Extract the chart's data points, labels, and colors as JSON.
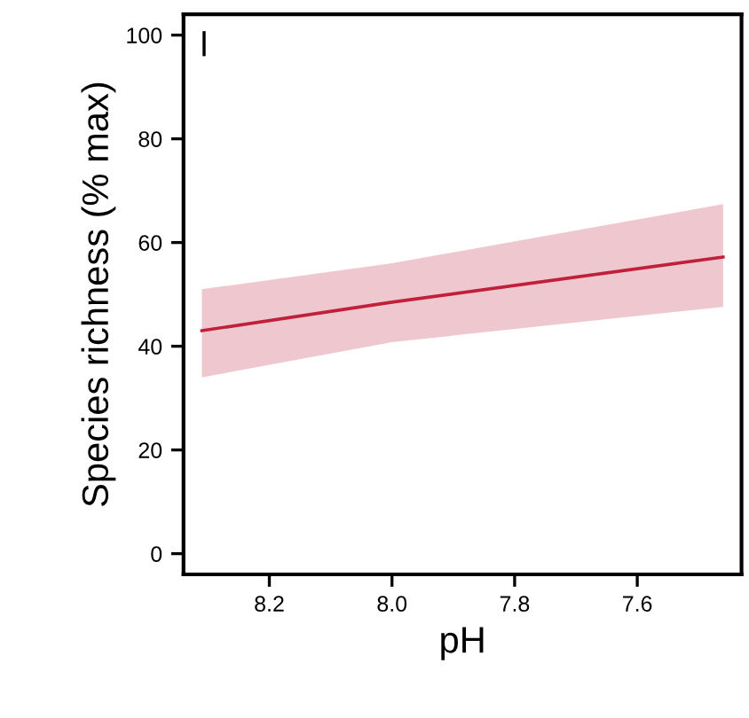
{
  "chart_data": {
    "type": "line",
    "xlabel": "pH",
    "ylabel": "Species richness (% max)",
    "annotations": [
      "l"
    ],
    "x": [
      8.31,
      8.0,
      7.46
    ],
    "series": [
      {
        "color": "#c0203a",
        "values": [
          43,
          48.5,
          57.2
        ],
        "lower": [
          34,
          40.8,
          47.6
        ],
        "upper": [
          51,
          56,
          67.4
        ]
      }
    ],
    "xlim": [
      8.34,
      7.43
    ],
    "xticks": [
      8.2,
      {
        "value": 8.0,
        "label": "8.0"
      },
      7.8,
      7.6
    ],
    "ylim": [
      -4,
      104
    ],
    "yticks": [
      0,
      20,
      40,
      60,
      80,
      100
    ],
    "grid": false,
    "line_style": "solid",
    "marker": "none"
  }
}
